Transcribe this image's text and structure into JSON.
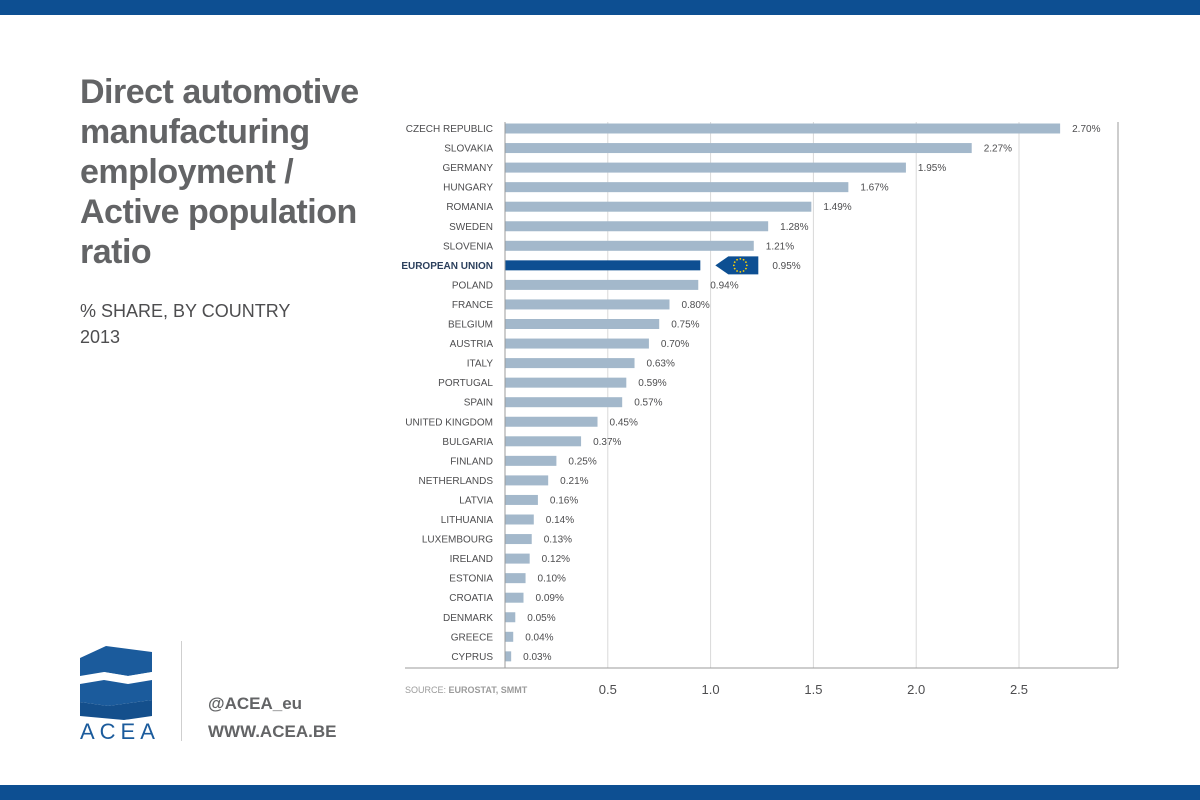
{
  "title": "Direct automotive manufacturing employment / Active population ratio",
  "subtitle": [
    "% SHARE, BY COUNTRY",
    "2013"
  ],
  "source_label": "SOURCE:",
  "source_value": "EUROSTAT, SMMT",
  "brand": {
    "logo_text": "ACEA",
    "twitter": "@ACEA_eu",
    "website": "WWW.ACEA.BE",
    "primary_color": "#0d4f92"
  },
  "chart_data": {
    "type": "bar",
    "orientation": "horizontal",
    "categories": [
      "CZECH REPUBLIC",
      "SLOVAKIA",
      "GERMANY",
      "HUNGARY",
      "ROMANIA",
      "SWEDEN",
      "SLOVENIA",
      "EUROPEAN UNION",
      "POLAND",
      "FRANCE",
      "BELGIUM",
      "AUSTRIA",
      "ITALY",
      "PORTUGAL",
      "SPAIN",
      "UNITED KINGDOM",
      "BULGARIA",
      "FINLAND",
      "NETHERLANDS",
      "LATVIA",
      "LITHUANIA",
      "LUXEMBOURG",
      "IRELAND",
      "ESTONIA",
      "CROATIA",
      "DENMARK",
      "GREECE",
      "CYPRUS"
    ],
    "values": [
      2.7,
      2.27,
      1.95,
      1.67,
      1.49,
      1.28,
      1.21,
      0.95,
      0.94,
      0.8,
      0.75,
      0.7,
      0.63,
      0.59,
      0.57,
      0.45,
      0.37,
      0.25,
      0.21,
      0.16,
      0.14,
      0.13,
      0.12,
      0.1,
      0.09,
      0.05,
      0.04,
      0.03
    ],
    "value_labels": [
      "2.70%",
      "2.27%",
      "1.95%",
      "1.67%",
      "1.49%",
      "1.28%",
      "1.21%",
      "0.95%",
      "0.94%",
      "0.80%",
      "0.75%",
      "0.70%",
      "0.63%",
      "0.59%",
      "0.57%",
      "0.45%",
      "0.37%",
      "0.25%",
      "0.21%",
      "0.16%",
      "0.14%",
      "0.13%",
      "0.12%",
      "0.10%",
      "0.09%",
      "0.05%",
      "0.04%",
      "0.03%"
    ],
    "highlight": "EUROPEAN UNION",
    "highlight_icon": "eu-flag-icon",
    "xticks": [
      0.5,
      1.0,
      1.5,
      2.0,
      2.5
    ],
    "xtick_labels": [
      "0.5",
      "1.0",
      "1.5",
      "2.0",
      "2.5"
    ],
    "xlim": [
      0,
      3.0
    ],
    "grid": true,
    "colors": {
      "bar": "#a3b8cb",
      "highlight": "#0d4f92",
      "grid": "#d9d9d9",
      "axis": "#9b9b9b",
      "label": "#4d4d4f",
      "flag_star": "#ffd200"
    }
  }
}
